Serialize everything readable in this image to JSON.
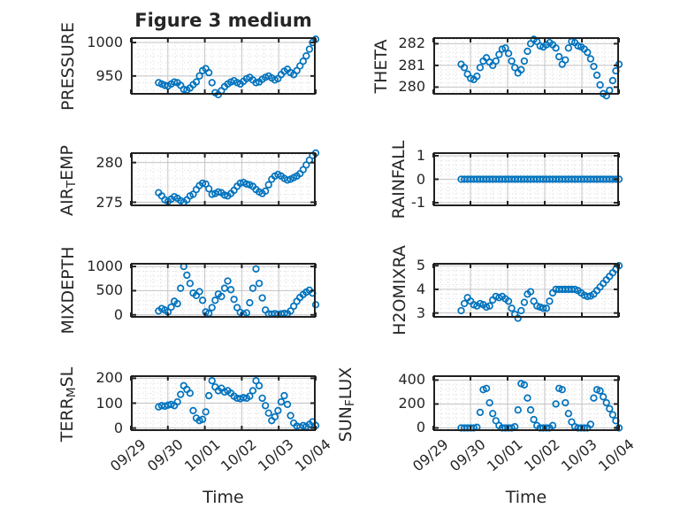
{
  "figure": {
    "title": "Figure 3 medium",
    "xlabel": "Time",
    "background": "#ffffff"
  },
  "style": {
    "marker_color": "#0072BD",
    "box_color": "#212121",
    "text_color": "#262626",
    "grid_color": "#c3c3c3",
    "minor_grid_color": "#d4d4d4"
  },
  "time_axis": {
    "xlim_days": [
      0,
      5
    ],
    "tick_days": [
      0,
      1,
      2,
      3,
      4,
      5
    ],
    "tick_labels": [
      "09/29",
      "09/30",
      "10/01",
      "10/02",
      "10/03",
      "10/04"
    ],
    "x_days": [
      0.75,
      0.835,
      0.92,
      1.005,
      1.09,
      1.175,
      1.26,
      1.345,
      1.43,
      1.515,
      1.6,
      1.685,
      1.77,
      1.855,
      1.94,
      2.025,
      2.11,
      2.195,
      2.28,
      2.365,
      2.45,
      2.535,
      2.62,
      2.705,
      2.79,
      2.875,
      2.96,
      3.045,
      3.13,
      3.215,
      3.3,
      3.385,
      3.47,
      3.555,
      3.64,
      3.725,
      3.81,
      3.895,
      3.98,
      4.065,
      4.15,
      4.235,
      4.32,
      4.405,
      4.49,
      4.575,
      4.66,
      4.745,
      4.83,
      4.915,
      5.0
    ]
  },
  "chart_data": [
    {
      "name": "PRESSURE",
      "type": "scatter",
      "ylabel": "PRESSURE",
      "ylabel_parts": [
        {
          "text": "PRESSURE",
          "sub": false
        }
      ],
      "yticks": [
        950,
        1000
      ],
      "ylim": [
        922,
        1008
      ],
      "y": [
        940,
        938,
        936,
        935,
        938,
        941,
        940,
        936,
        930,
        929,
        932,
        937,
        941,
        950,
        958,
        961,
        955,
        940,
        925,
        922,
        928,
        934,
        938,
        941,
        943,
        940,
        938,
        942,
        946,
        948,
        944,
        940,
        941,
        945,
        948,
        950,
        947,
        944,
        946,
        952,
        957,
        960,
        955,
        952,
        958,
        965,
        972,
        980,
        990,
        1000,
        1005
      ]
    },
    {
      "name": "THETA",
      "type": "scatter",
      "ylabel": "THETA",
      "ylabel_parts": [
        {
          "text": "THETA",
          "sub": false
        }
      ],
      "yticks": [
        280,
        281,
        282
      ],
      "ylim": [
        279.65,
        282.3
      ],
      "y": [
        281.05,
        280.9,
        280.6,
        280.4,
        280.35,
        280.5,
        280.9,
        281.2,
        281.35,
        281.15,
        281.0,
        281.2,
        281.5,
        281.75,
        281.8,
        281.55,
        281.2,
        280.9,
        280.65,
        280.8,
        281.2,
        281.65,
        282.0,
        282.2,
        282.1,
        281.9,
        281.85,
        281.95,
        282.05,
        281.95,
        281.8,
        281.4,
        281.05,
        281.25,
        281.8,
        282.1,
        282.05,
        281.9,
        281.85,
        281.75,
        281.6,
        281.3,
        280.95,
        280.55,
        280.1,
        279.7,
        279.6,
        279.85,
        280.3,
        280.75,
        281.05
      ]
    },
    {
      "name": "AIR_TEMP",
      "type": "scatter",
      "ylabel": "AIR_TEMP",
      "ylabel_parts": [
        {
          "text": "AIR",
          "sub": false
        },
        {
          "text": "T",
          "sub": true
        },
        {
          "text": "EMP",
          "sub": false
        }
      ],
      "yticks": [
        275,
        280
      ],
      "ylim": [
        274.5,
        281.3
      ],
      "y": [
        276.2,
        275.8,
        275.3,
        275.1,
        275.4,
        275.7,
        275.5,
        275.2,
        275.0,
        275.3,
        275.8,
        276.0,
        276.6,
        277.1,
        277.4,
        277.3,
        276.7,
        276.0,
        276.1,
        276.3,
        276.2,
        275.9,
        275.8,
        276.1,
        276.5,
        277.0,
        277.4,
        277.5,
        277.3,
        277.2,
        277.0,
        276.6,
        276.3,
        276.1,
        276.4,
        277.2,
        277.9,
        278.3,
        278.5,
        278.3,
        278.0,
        277.8,
        277.9,
        278.1,
        278.3,
        278.6,
        279.1,
        279.7,
        280.3,
        280.9,
        281.2
      ]
    },
    {
      "name": "RAINFALL",
      "type": "scatter",
      "ylabel": "RAINFALL",
      "ylabel_parts": [
        {
          "text": "RAINFALL",
          "sub": false
        }
      ],
      "yticks": [
        -1,
        0,
        1
      ],
      "ylim": [
        -1.15,
        1.15
      ],
      "y": [
        0,
        0,
        0,
        0,
        0,
        0,
        0,
        0,
        0,
        0,
        0,
        0,
        0,
        0,
        0,
        0,
        0,
        0,
        0,
        0,
        0,
        0,
        0,
        0,
        0,
        0,
        0,
        0,
        0,
        0,
        0,
        0,
        0,
        0,
        0,
        0,
        0,
        0,
        0,
        0,
        0,
        0,
        0,
        0,
        0,
        0,
        0,
        0,
        0,
        0,
        0
      ]
    },
    {
      "name": "MIXDEPTH",
      "type": "scatter",
      "ylabel": "MIXDEPTH",
      "ylabel_parts": [
        {
          "text": "MIXDEPTH",
          "sub": false
        }
      ],
      "yticks": [
        0,
        500,
        1000
      ],
      "ylim": [
        -60,
        1075
      ],
      "y": [
        80,
        130,
        100,
        60,
        160,
        280,
        230,
        550,
        1000,
        820,
        650,
        450,
        400,
        480,
        300,
        60,
        30,
        150,
        300,
        430,
        380,
        550,
        700,
        520,
        320,
        150,
        50,
        15,
        40,
        250,
        550,
        950,
        650,
        350,
        100,
        20,
        15,
        25,
        10,
        20,
        30,
        25,
        80,
        180,
        280,
        360,
        420,
        470,
        510,
        450,
        210
      ]
    },
    {
      "name": "H2OMIXRA",
      "type": "scatter",
      "ylabel": "H2OMIXRA",
      "ylabel_parts": [
        {
          "text": "H2OMIXRA",
          "sub": false
        }
      ],
      "yticks": [
        3,
        4,
        5
      ],
      "ylim": [
        2.8,
        5.12
      ],
      "y": [
        3.1,
        3.4,
        3.65,
        3.5,
        3.35,
        3.3,
        3.4,
        3.35,
        3.25,
        3.3,
        3.55,
        3.7,
        3.65,
        3.7,
        3.6,
        3.5,
        3.2,
        2.95,
        2.78,
        3.1,
        3.45,
        3.8,
        3.9,
        3.5,
        3.3,
        3.25,
        3.2,
        3.2,
        3.5,
        3.85,
        4.0,
        4.0,
        4.0,
        4.0,
        4.0,
        4.0,
        4.0,
        3.95,
        3.85,
        3.75,
        3.7,
        3.72,
        3.8,
        3.95,
        4.1,
        4.25,
        4.4,
        4.55,
        4.7,
        4.85,
        5.0
      ]
    },
    {
      "name": "TERR_MSL",
      "type": "scatter",
      "ylabel": "TERR_MSL",
      "ylabel_parts": [
        {
          "text": "TERR",
          "sub": false
        },
        {
          "text": "M",
          "sub": true
        },
        {
          "text": "SL",
          "sub": false
        }
      ],
      "yticks": [
        0,
        100,
        200
      ],
      "ylim": [
        -12,
        212
      ],
      "y": [
        85,
        90,
        88,
        92,
        95,
        90,
        105,
        135,
        170,
        155,
        140,
        70,
        40,
        30,
        35,
        65,
        130,
        190,
        165,
        150,
        160,
        145,
        150,
        140,
        128,
        120,
        118,
        122,
        120,
        128,
        150,
        190,
        170,
        120,
        90,
        60,
        30,
        45,
        70,
        105,
        130,
        95,
        50,
        20,
        8,
        4,
        10,
        6,
        15,
        25,
        10
      ]
    },
    {
      "name": "SUN_FLUX",
      "type": "scatter",
      "ylabel": "SUN_FLUX",
      "ylabel_parts": [
        {
          "text": "SUN",
          "sub": false
        },
        {
          "text": "F",
          "sub": true
        },
        {
          "text": "LUX",
          "sub": false
        }
      ],
      "yticks": [
        0,
        200,
        400
      ],
      "ylim": [
        -26,
        440
      ],
      "y": [
        0,
        0,
        0,
        0,
        0,
        5,
        130,
        320,
        330,
        210,
        120,
        60,
        20,
        0,
        0,
        0,
        0,
        10,
        150,
        370,
        360,
        250,
        150,
        70,
        20,
        0,
        0,
        0,
        0,
        20,
        200,
        330,
        320,
        210,
        120,
        50,
        10,
        0,
        0,
        0,
        0,
        30,
        250,
        320,
        310,
        260,
        210,
        160,
        110,
        60,
        0
      ]
    }
  ]
}
